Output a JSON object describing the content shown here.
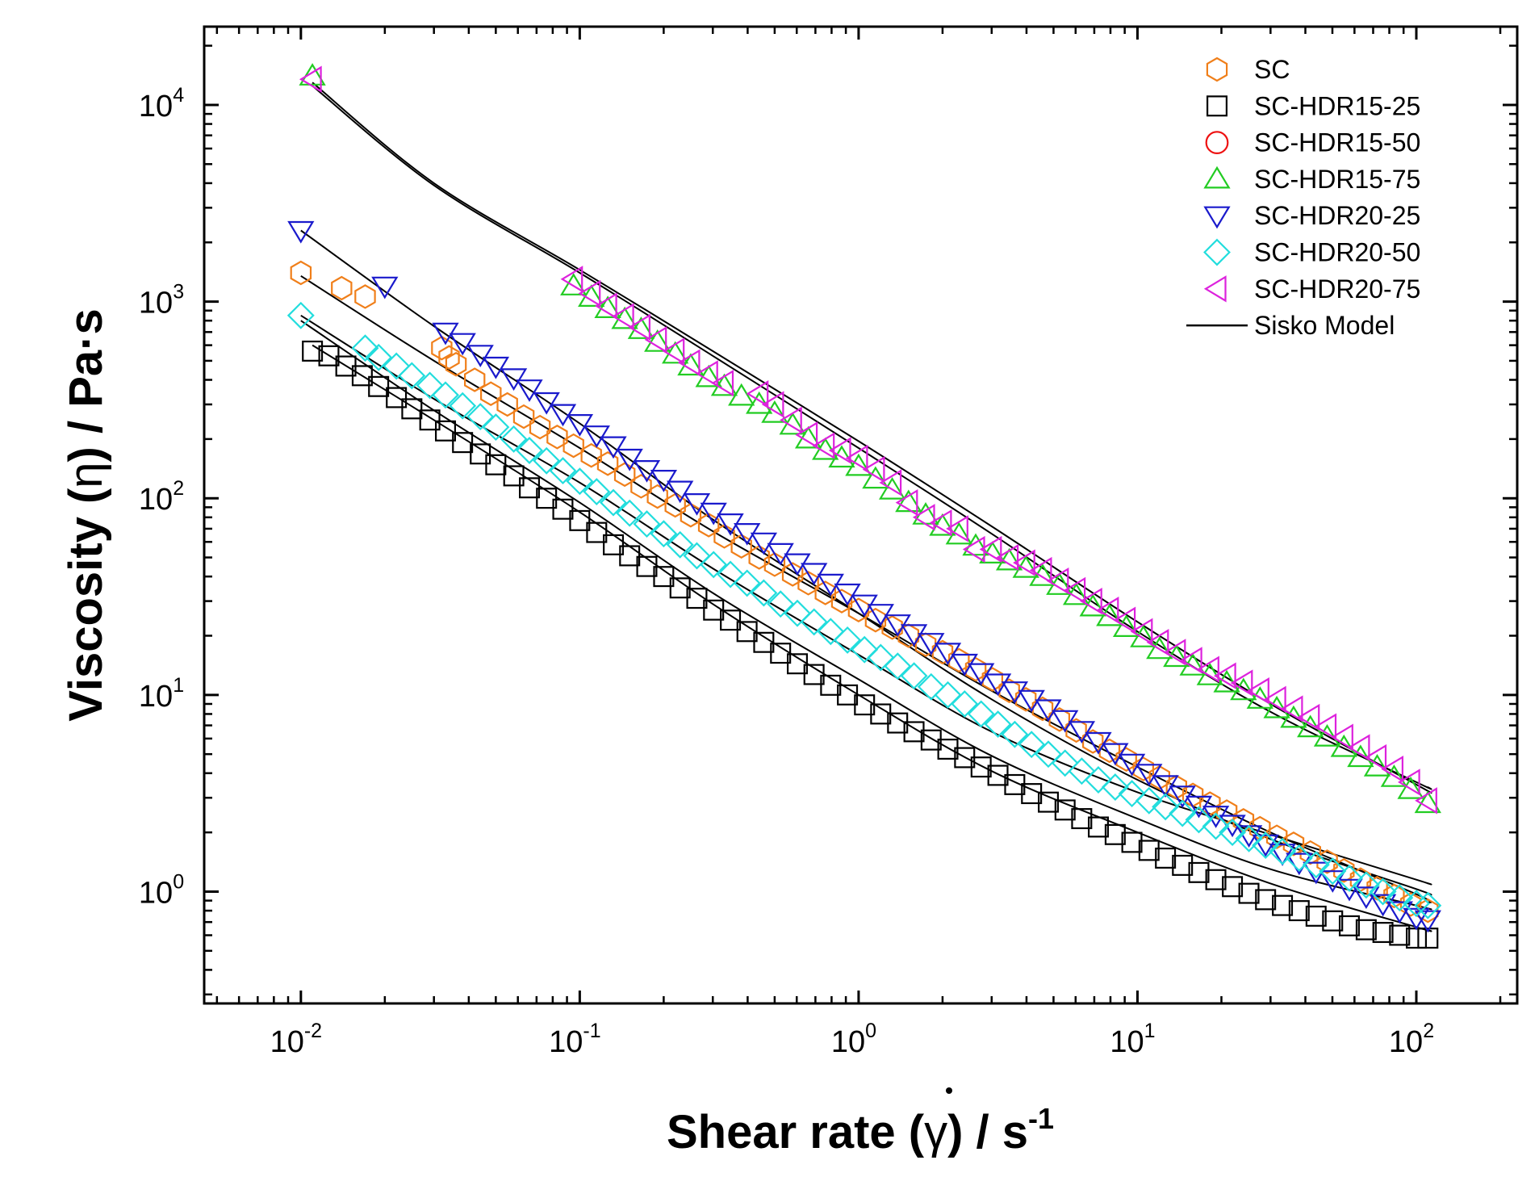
{
  "chart_data": {
    "type": "scatter",
    "title": "",
    "xlabel": {
      "prefix": "Shear rate (",
      "symbol": "γ",
      "suffix": ") / s",
      "sup": "-1"
    },
    "ylabel": {
      "prefix": "Viscosity (",
      "symbol": "η",
      "suffix": ") / Pa",
      "dot": "·",
      "end": "s"
    },
    "x_scale": "log",
    "y_scale": "log",
    "xlim": [
      0.0045,
      230
    ],
    "ylim": [
      0.27,
      25000
    ],
    "x_ticks": [
      {
        "base": "10",
        "exp": "-2",
        "value": 0.01
      },
      {
        "base": "10",
        "exp": "-1",
        "value": 0.1
      },
      {
        "base": "10",
        "exp": "0",
        "value": 1
      },
      {
        "base": "10",
        "exp": "1",
        "value": 10
      },
      {
        "base": "10",
        "exp": "2",
        "value": 100
      }
    ],
    "y_ticks": [
      {
        "base": "10",
        "exp": "0",
        "value": 1
      },
      {
        "base": "10",
        "exp": "1",
        "value": 10
      },
      {
        "base": "10",
        "exp": "2",
        "value": 100
      },
      {
        "base": "10",
        "exp": "3",
        "value": 1000
      },
      {
        "base": "10",
        "exp": "4",
        "value": 10000
      }
    ],
    "legend_position": "top-right",
    "x_shared": [
      0.01,
      0.0126,
      0.0158,
      0.02,
      0.0251,
      0.0316,
      0.0398,
      0.0501,
      0.0631,
      0.0794,
      0.1,
      0.126,
      0.158,
      0.2,
      0.251,
      0.316,
      0.398,
      0.501,
      0.631,
      0.794,
      1,
      1.26,
      1.58,
      2,
      2.51,
      3.16,
      3.98,
      5.01,
      6.31,
      7.94,
      10,
      12.6,
      15.8,
      20,
      25.1,
      31.6,
      39.8,
      50.1,
      63.1,
      79.4,
      100
    ],
    "series": [
      {
        "name": "SC",
        "marker": "hexagon",
        "color": "#f07f1a",
        "x": [
          0.01,
          0.014,
          0.017,
          0.032,
          0.034,
          0.036,
          0.042,
          0.048,
          0.055,
          0.063,
          0.072,
          0.083,
          0.095,
          0.11,
          0.126,
          0.145,
          0.166,
          0.19,
          0.22,
          0.25,
          0.29,
          0.33,
          0.38,
          0.44,
          0.5,
          0.58,
          0.66,
          0.76,
          0.87,
          1.0,
          1.15,
          1.32,
          1.51,
          1.74,
          2.0,
          2.29,
          2.63,
          3.02,
          3.47,
          3.98,
          4.57,
          5.25,
          6.03,
          6.92,
          7.94,
          9.12,
          10.5,
          12.0,
          13.8,
          15.8,
          18.2,
          20.9,
          24.0,
          27.5,
          31.6,
          36.3,
          41.7,
          47.9,
          55.0,
          63.1,
          72.4,
          83.2,
          95.5,
          110
        ],
        "y": [
          1400,
          1170,
          1060,
          580,
          520,
          480,
          400,
          340,
          300,
          260,
          230,
          205,
          185,
          165,
          150,
          132,
          115,
          102,
          92,
          82,
          73,
          64,
          57,
          50,
          46,
          41,
          37,
          33,
          30,
          27,
          24,
          22,
          20,
          18,
          16.5,
          15,
          13.5,
          12,
          10.5,
          9.5,
          8.5,
          7.5,
          6.6,
          5.8,
          5.2,
          4.7,
          4.2,
          3.8,
          3.4,
          3.1,
          2.8,
          2.55,
          2.3,
          2.1,
          1.9,
          1.75,
          1.58,
          1.42,
          1.28,
          1.15,
          1.04,
          0.95,
          0.86,
          0.8
        ]
      },
      {
        "name": "SC-HDR15-25",
        "marker": "square",
        "color": "#000000",
        "x": [
          0.011,
          0.0126,
          0.0145,
          0.0166,
          0.019,
          0.022,
          0.025,
          0.029,
          0.033,
          0.038,
          0.044,
          0.05,
          0.058,
          0.066,
          0.076,
          0.087,
          0.1,
          0.115,
          0.132,
          0.151,
          0.174,
          0.2,
          0.229,
          0.263,
          0.302,
          0.347,
          0.398,
          0.457,
          0.525,
          0.603,
          0.692,
          0.794,
          0.912,
          1.05,
          1.2,
          1.38,
          1.58,
          1.82,
          2.09,
          2.4,
          2.75,
          3.16,
          3.63,
          4.17,
          4.79,
          5.5,
          6.31,
          7.24,
          8.32,
          9.55,
          11.0,
          12.6,
          14.5,
          16.6,
          19.1,
          21.9,
          25.1,
          28.8,
          33.1,
          38.0,
          43.7,
          50.1,
          57.5,
          66.1,
          75.9,
          87.1,
          100,
          110
        ],
        "y": [
          560,
          530,
          470,
          420,
          370,
          325,
          285,
          250,
          220,
          192,
          168,
          148,
          130,
          113,
          100,
          88,
          77,
          67,
          58,
          51,
          45,
          40,
          35,
          31,
          27,
          24,
          21,
          18.5,
          16.3,
          14.4,
          12.7,
          11.2,
          10,
          8.9,
          8,
          7.2,
          6.5,
          5.9,
          5.3,
          4.8,
          4.3,
          3.9,
          3.5,
          3.15,
          2.85,
          2.6,
          2.35,
          2.13,
          1.95,
          1.78,
          1.62,
          1.48,
          1.36,
          1.25,
          1.15,
          1.06,
          0.98,
          0.91,
          0.85,
          0.8,
          0.75,
          0.71,
          0.67,
          0.64,
          0.62,
          0.6,
          0.58,
          0.58
        ]
      },
      {
        "name": "SC-HDR15-50",
        "marker": "circle",
        "color": "#ee1111",
        "x": [],
        "y": []
      },
      {
        "name": "SC-HDR15-75",
        "marker": "triangle-up",
        "color": "#22cc22",
        "x": [
          0.011,
          0.095,
          0.11,
          0.126,
          0.145,
          0.166,
          0.19,
          0.22,
          0.25,
          0.29,
          0.33,
          0.38,
          0.44,
          0.5,
          0.58,
          0.66,
          0.76,
          0.87,
          1.0,
          1.15,
          1.32,
          1.51,
          1.74,
          2.0,
          2.29,
          2.63,
          3.02,
          3.47,
          3.98,
          4.57,
          5.25,
          6.03,
          6.92,
          7.94,
          9.12,
          10.5,
          12.0,
          13.8,
          15.8,
          18.2,
          20.9,
          24.0,
          27.5,
          31.6,
          36.3,
          41.7,
          47.9,
          55.0,
          63.1,
          72.4,
          83.2,
          95.5,
          110
        ],
        "y": [
          14000,
          1200,
          1050,
          920,
          810,
          720,
          620,
          540,
          470,
          410,
          370,
          330,
          300,
          270,
          235,
          200,
          175,
          160,
          145,
          125,
          110,
          95,
          82,
          72,
          65,
          57,
          52,
          48,
          44,
          40,
          36,
          32,
          28,
          25,
          22,
          19.5,
          17,
          15.5,
          14,
          12.5,
          11.5,
          10.5,
          9.5,
          8.5,
          7.6,
          6.8,
          6.1,
          5.4,
          4.8,
          4.3,
          3.8,
          3.3,
          2.8
        ]
      },
      {
        "name": "SC-HDR20-25",
        "marker": "triangle-down",
        "color": "#1a1acc",
        "x": [
          0.01,
          0.02,
          0.033,
          0.038,
          0.044,
          0.05,
          0.058,
          0.066,
          0.076,
          0.087,
          0.1,
          0.115,
          0.132,
          0.151,
          0.174,
          0.2,
          0.229,
          0.263,
          0.302,
          0.347,
          0.398,
          0.457,
          0.525,
          0.603,
          0.692,
          0.794,
          0.912,
          1.05,
          1.2,
          1.38,
          1.58,
          1.82,
          2.09,
          2.4,
          2.75,
          3.16,
          3.63,
          4.17,
          4.79,
          5.5,
          6.31,
          7.24,
          8.32,
          9.55,
          11.0,
          12.6,
          14.5,
          16.6,
          19.1,
          21.9,
          25.1,
          28.8,
          33.1,
          38.0,
          43.7,
          50.1,
          57.5,
          66.1,
          75.9,
          87.1,
          100,
          110
        ],
        "y": [
          2300,
          1200,
          700,
          620,
          540,
          470,
          410,
          360,
          310,
          270,
          240,
          210,
          185,
          160,
          140,
          125,
          110,
          95,
          85,
          75,
          67,
          60,
          53,
          47,
          42,
          37,
          33,
          29,
          26,
          23,
          20.5,
          18.5,
          16.5,
          14.5,
          13,
          11.5,
          10.5,
          9.5,
          8.5,
          7.5,
          6.6,
          5.8,
          5.1,
          4.5,
          4,
          3.5,
          3.1,
          2.75,
          2.45,
          2.2,
          1.95,
          1.75,
          1.57,
          1.41,
          1.27,
          1.15,
          1.04,
          0.95,
          0.87,
          0.8,
          0.74,
          0.72
        ]
      },
      {
        "name": "SC-HDR20-50",
        "marker": "diamond",
        "color": "#22dddd",
        "x": [
          0.01,
          0.017,
          0.019,
          0.022,
          0.025,
          0.029,
          0.033,
          0.038,
          0.044,
          0.05,
          0.058,
          0.066,
          0.076,
          0.087,
          0.1,
          0.115,
          0.132,
          0.151,
          0.174,
          0.2,
          0.229,
          0.263,
          0.302,
          0.347,
          0.398,
          0.457,
          0.525,
          0.603,
          0.692,
          0.794,
          0.912,
          1.05,
          1.2,
          1.38,
          1.58,
          1.82,
          2.09,
          2.4,
          2.75,
          3.16,
          3.63,
          4.17,
          4.79,
          5.5,
          6.31,
          7.24,
          8.32,
          9.55,
          11.0,
          12.6,
          14.5,
          16.6,
          19.1,
          21.9,
          25.1,
          28.8,
          33.1,
          38.0,
          43.7,
          50.1,
          57.5,
          66.1,
          75.9,
          87.1,
          100,
          110
        ],
        "y": [
          850,
          580,
          520,
          470,
          420,
          375,
          335,
          295,
          260,
          230,
          200,
          175,
          155,
          138,
          122,
          108,
          95,
          84,
          74,
          66,
          58,
          51,
          46,
          41,
          37,
          33,
          29,
          26,
          23.5,
          21,
          19,
          17,
          15.5,
          14,
          12.5,
          11,
          10,
          9,
          8,
          7.1,
          6.3,
          5.6,
          5,
          4.5,
          4.1,
          3.7,
          3.4,
          3.15,
          2.9,
          2.7,
          2.5,
          2.32,
          2.15,
          2.0,
          1.86,
          1.72,
          1.6,
          1.48,
          1.37,
          1.27,
          1.17,
          1.08,
          1.0,
          0.93,
          0.87,
          0.85
        ]
      },
      {
        "name": "SC-HDR20-75",
        "marker": "triangle-left",
        "color": "#dd22dd",
        "x": [
          0.011,
          0.095,
          0.11,
          0.126,
          0.145,
          0.166,
          0.19,
          0.22,
          0.25,
          0.29,
          0.33,
          0.44,
          0.5,
          0.58,
          0.66,
          0.76,
          0.87,
          1.0,
          1.15,
          1.32,
          1.51,
          1.74,
          2.0,
          2.29,
          2.63,
          3.02,
          3.47,
          3.98,
          4.57,
          5.25,
          6.03,
          6.92,
          7.94,
          9.12,
          10.5,
          12.0,
          13.8,
          15.8,
          18.2,
          20.9,
          24.0,
          27.5,
          31.6,
          36.3,
          41.7,
          47.9,
          55.0,
          63.1,
          72.4,
          83.2,
          95.5,
          110
        ],
        "y": [
          13500,
          1300,
          1100,
          950,
          840,
          740,
          640,
          560,
          490,
          430,
          385,
          340,
          300,
          250,
          210,
          185,
          175,
          160,
          140,
          120,
          95,
          80,
          75,
          70,
          55,
          55,
          50,
          47,
          43,
          38,
          34,
          30,
          27,
          24,
          21,
          18.5,
          16.5,
          15,
          13.5,
          12.5,
          11.5,
          10.5,
          9.5,
          8.5,
          7.7,
          6.9,
          6.1,
          5.4,
          4.8,
          4.2,
          3.6,
          2.9
        ]
      }
    ],
    "model_curves": [
      {
        "name": "Sisko Model",
        "color": "#000000",
        "curves": [
          {
            "x": [
              0.011,
              0.03,
              0.1,
              0.3,
              1,
              3,
              10,
              30,
              100,
              110
            ],
            "y": [
              13000,
              4000,
              1450,
              560,
              195,
              72,
              23.5,
              9.0,
              3.5,
              3.25
            ]
          },
          {
            "x": [
              0.011,
              0.03,
              0.1,
              0.3,
              1,
              3,
              10,
              30,
              100,
              110
            ],
            "y": [
              12500,
              3900,
              1400,
              530,
              180,
              66,
              21,
              8.2,
              3.6,
              3.4
            ]
          },
          {
            "x": [
              0.01,
              0.03,
              0.1,
              0.3,
              1,
              3,
              10,
              30,
              100,
              110
            ],
            "y": [
              2300,
              750,
              240,
              78,
              26,
              9.5,
              3.7,
              1.85,
              1.03,
              0.97
            ]
          },
          {
            "x": [
              0.01,
              0.03,
              0.1,
              0.3,
              1,
              3,
              10,
              30,
              100,
              110
            ],
            "y": [
              1350,
              500,
              180,
              68,
              26,
              10.5,
              4.3,
              2.0,
              0.97,
              0.88
            ]
          },
          {
            "x": [
              0.01,
              0.03,
              0.1,
              0.3,
              1,
              3,
              10,
              30,
              100,
              110
            ],
            "y": [
              850,
              320,
              120,
              44,
              16,
              6.5,
              3.2,
              1.95,
              1.15,
              1.1
            ]
          },
          {
            "x": [
              0.01,
              0.03,
              0.1,
              0.3,
              1,
              3,
              10,
              30,
              100,
              110
            ],
            "y": [
              800,
              280,
              95,
              33,
              12,
              4.9,
              2.35,
              1.3,
              0.85,
              0.82
            ]
          },
          {
            "x": [
              0.011,
              0.03,
              0.1,
              0.3,
              1,
              3,
              10,
              30,
              100,
              110
            ],
            "y": [
              600,
              250,
              85,
              29,
              10,
              4.1,
              2.0,
              1.1,
              0.66,
              0.64
            ]
          }
        ]
      }
    ],
    "legend": [
      {
        "label": "SC",
        "marker": "hexagon",
        "color": "#f07f1a"
      },
      {
        "label": "SC-HDR15-25",
        "marker": "square",
        "color": "#000000"
      },
      {
        "label": "SC-HDR15-50",
        "marker": "circle",
        "color": "#ee1111"
      },
      {
        "label": "SC-HDR15-75",
        "marker": "triangle-up",
        "color": "#22cc22"
      },
      {
        "label": "SC-HDR20-25",
        "marker": "triangle-down",
        "color": "#1a1acc"
      },
      {
        "label": "SC-HDR20-50",
        "marker": "diamond",
        "color": "#22dddd"
      },
      {
        "label": "SC-HDR20-75",
        "marker": "triangle-left",
        "color": "#dd22dd"
      },
      {
        "label": "Sisko Model",
        "marker": "line",
        "color": "#000000"
      }
    ]
  }
}
